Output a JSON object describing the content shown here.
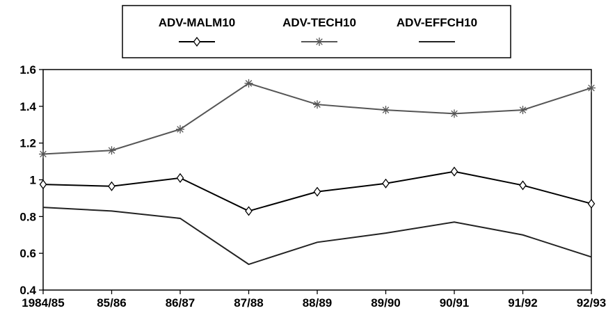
{
  "chart_data": {
    "type": "line",
    "title": "",
    "xlabel": "",
    "ylabel": "",
    "categories": [
      "1984/85",
      "85/86",
      "86/87",
      "87/88",
      "88/89",
      "89/90",
      "90/91",
      "91/92",
      "92/93"
    ],
    "ylim": [
      0.4,
      1.6
    ],
    "yticks": [
      0.4,
      0.6,
      0.8,
      1,
      1.2,
      1.4,
      1.6
    ],
    "ytick_labels": [
      "0.4",
      "0.6",
      "0.8",
      "1",
      "1.2",
      "1.4",
      "1.6"
    ],
    "grid": false,
    "legend_position": "top-center",
    "series": [
      {
        "name": "ADV-MALM10",
        "marker": "diamond",
        "color": "#000000",
        "values": [
          0.975,
          0.965,
          1.01,
          0.83,
          0.935,
          0.98,
          1.045,
          0.97,
          0.87
        ]
      },
      {
        "name": "ADV-TECH10",
        "marker": "asterisk",
        "color": "#555555",
        "values": [
          1.14,
          1.16,
          1.275,
          1.525,
          1.41,
          1.38,
          1.36,
          1.38,
          1.5
        ]
      },
      {
        "name": "ADV-EFFCH10",
        "marker": "none",
        "color": "#222222",
        "values": [
          0.85,
          0.83,
          0.79,
          0.54,
          0.66,
          0.71,
          0.77,
          0.7,
          0.58
        ]
      }
    ]
  }
}
